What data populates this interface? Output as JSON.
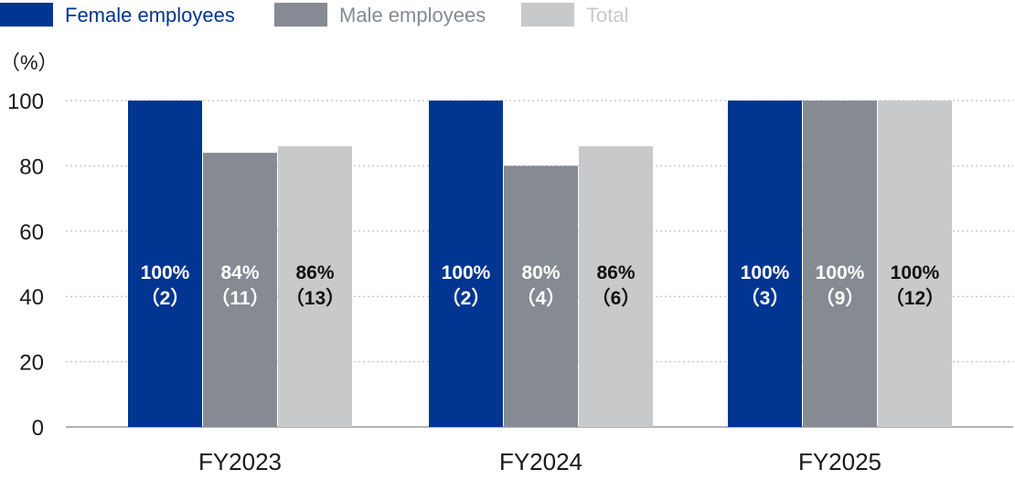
{
  "chart_data": {
    "type": "bar",
    "unit_label": "（%）",
    "categories": [
      "FY2023",
      "FY2024",
      "FY2025"
    ],
    "series": [
      {
        "name": "Female employees",
        "color": "#003591",
        "label_color": "#ffffff",
        "values": [
          100,
          100,
          100
        ],
        "labels": [
          [
            "100%",
            "（2）"
          ],
          [
            "100%",
            "（2）"
          ],
          [
            "100%",
            "（3）"
          ]
        ]
      },
      {
        "name": "Male employees",
        "color": "#858a93",
        "label_color": "#ffffff",
        "values": [
          84,
          80,
          100
        ],
        "labels": [
          [
            "84%",
            "（11）"
          ],
          [
            "80%",
            "（4）"
          ],
          [
            "100%",
            "（9）"
          ]
        ]
      },
      {
        "name": "Total",
        "color": "#c8c9ca",
        "label_color": "#111111",
        "values": [
          86,
          86,
          100
        ],
        "labels": [
          [
            "86%",
            "（13）"
          ],
          [
            "86%",
            "（6）"
          ],
          [
            "100%",
            "（12）"
          ]
        ]
      }
    ],
    "ylim": [
      0,
      100
    ],
    "yticks": [
      "0",
      "20",
      "40",
      "60",
      "80",
      "100"
    ],
    "grid": true,
    "legend_position": "top-left"
  }
}
